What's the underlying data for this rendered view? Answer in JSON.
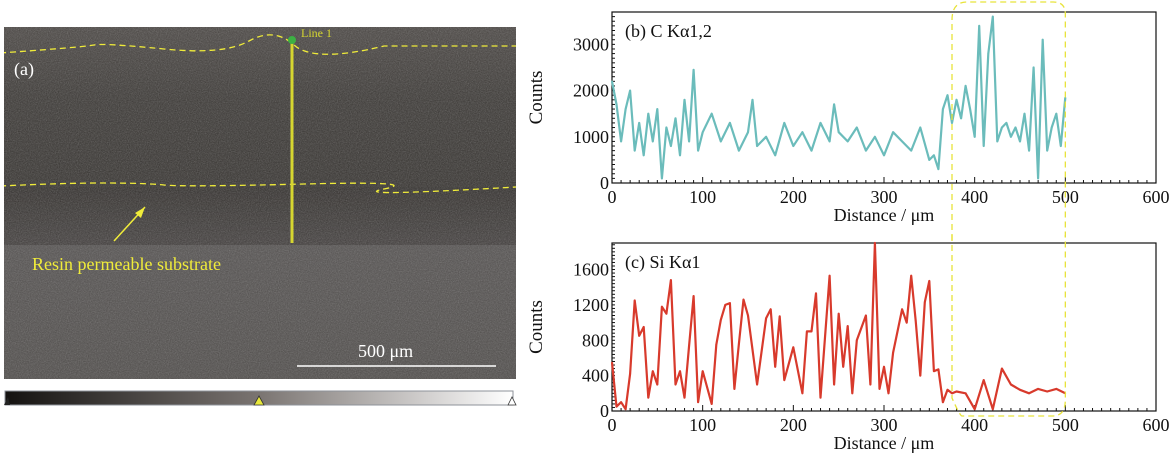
{
  "panel_a": {
    "label": "(a)",
    "line_label": "Line 1",
    "annotation": "Resin permeable substrate",
    "scale_bar_label": "500 μm",
    "colors": {
      "annotation": "#f0ec3a",
      "line": "#d6d630",
      "start_marker": "#3cb043",
      "scale_bar": "#ffffff"
    },
    "colorbar": {
      "marker_position": 0.5
    }
  },
  "chart_data": [
    {
      "type": "line",
      "title": "(b)  C Kα1,2",
      "xlabel": "Distance / μm",
      "ylabel": "Counts",
      "xlim": [
        0,
        600
      ],
      "ylim": [
        0,
        3700
      ],
      "xticks": [
        0,
        100,
        200,
        300,
        400,
        500,
        600
      ],
      "yticks": [
        0,
        1000,
        2000,
        3000
      ],
      "grid": false,
      "color": "#6bbcbb",
      "highlight_region": {
        "x": [
          375,
          500
        ]
      },
      "series": [
        {
          "name": "C Kα1,2",
          "x": [
            0,
            5,
            10,
            15,
            20,
            25,
            30,
            35,
            40,
            45,
            50,
            55,
            60,
            65,
            70,
            75,
            80,
            85,
            90,
            95,
            100,
            110,
            120,
            130,
            140,
            150,
            155,
            160,
            170,
            180,
            190,
            200,
            210,
            220,
            230,
            240,
            245,
            250,
            260,
            270,
            280,
            290,
            300,
            310,
            320,
            330,
            340,
            350,
            355,
            360,
            365,
            370,
            375,
            380,
            385,
            390,
            395,
            400,
            405,
            410,
            415,
            420,
            425,
            430,
            435,
            440,
            445,
            450,
            455,
            460,
            465,
            470,
            475,
            480,
            485,
            490,
            495,
            500
          ],
          "y": [
            2200,
            1700,
            900,
            1600,
            2000,
            700,
            1300,
            600,
            1500,
            900,
            1600,
            100,
            1200,
            800,
            1400,
            600,
            1800,
            900,
            2450,
            700,
            1100,
            1500,
            900,
            1300,
            700,
            1100,
            1800,
            800,
            1000,
            600,
            1300,
            800,
            1100,
            700,
            1300,
            900,
            1700,
            1100,
            900,
            1200,
            700,
            1000,
            600,
            1100,
            900,
            700,
            1200,
            500,
            600,
            300,
            1600,
            1900,
            1300,
            1800,
            1400,
            2100,
            1600,
            1000,
            3400,
            800,
            2800,
            3600,
            900,
            1200,
            1300,
            1000,
            1200,
            900,
            1500,
            700,
            2500,
            100,
            3100,
            700,
            1200,
            1500,
            800,
            1850
          ]
        }
      ]
    },
    {
      "type": "line",
      "title": "(c)  Si Kα1",
      "xlabel": "Distance / μm",
      "ylabel": "Counts",
      "xlim": [
        0,
        600
      ],
      "ylim": [
        0,
        1900
      ],
      "xticks": [
        0,
        100,
        200,
        300,
        400,
        500,
        600
      ],
      "yticks": [
        0,
        400,
        800,
        1200,
        1600
      ],
      "grid": false,
      "color": "#d83a2c",
      "highlight_region": {
        "x": [
          375,
          500
        ]
      },
      "series": [
        {
          "name": "Si Kα1",
          "x": [
            0,
            5,
            10,
            15,
            20,
            25,
            30,
            35,
            40,
            45,
            50,
            55,
            60,
            65,
            70,
            75,
            80,
            85,
            90,
            95,
            100,
            110,
            115,
            120,
            125,
            130,
            135,
            140,
            145,
            150,
            160,
            170,
            175,
            180,
            185,
            190,
            200,
            210,
            215,
            220,
            225,
            230,
            240,
            245,
            250,
            255,
            260,
            265,
            270,
            280,
            285,
            290,
            295,
            300,
            305,
            310,
            320,
            325,
            330,
            335,
            340,
            345,
            350,
            355,
            360,
            365,
            370,
            375,
            380,
            390,
            400,
            410,
            420,
            430,
            440,
            450,
            460,
            470,
            480,
            490,
            500
          ],
          "y": [
            550,
            50,
            100,
            20,
            420,
            1250,
            850,
            950,
            150,
            450,
            300,
            1180,
            1100,
            1480,
            300,
            450,
            150,
            740,
            1300,
            100,
            450,
            80,
            750,
            1030,
            1200,
            1220,
            250,
            760,
            1260,
            1080,
            300,
            1050,
            1150,
            500,
            1070,
            350,
            720,
            200,
            900,
            900,
            1330,
            150,
            1530,
            300,
            1100,
            500,
            960,
            200,
            800,
            1080,
            300,
            1900,
            250,
            500,
            200,
            660,
            1150,
            1000,
            1530,
            1020,
            400,
            1230,
            1470,
            450,
            470,
            100,
            240,
            200,
            220,
            200,
            20,
            350,
            20,
            480,
            300,
            240,
            200,
            250,
            220,
            250,
            200
          ]
        }
      ]
    }
  ]
}
